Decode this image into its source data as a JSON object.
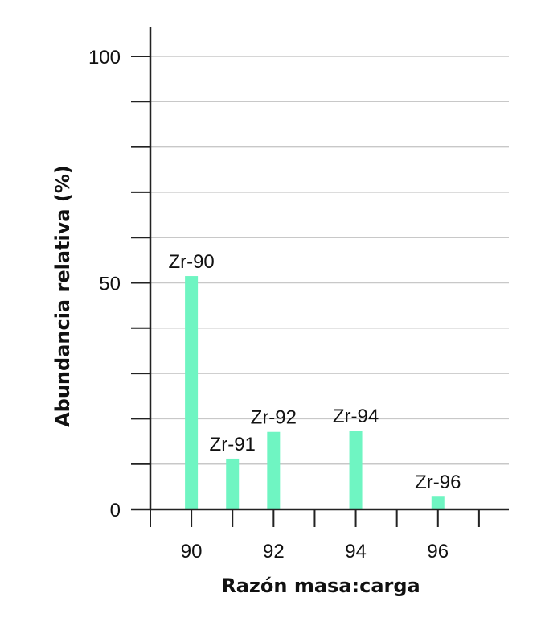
{
  "chart_data": {
    "type": "bar",
    "xlabel": "Razón masa:carga",
    "ylabel": "Abundancia relativa (%)",
    "ylim": [
      0,
      100
    ],
    "xlim": [
      89,
      98
    ],
    "y_ticks": [
      0,
      50,
      100
    ],
    "y_minor_ticks": [
      10,
      20,
      30,
      40,
      60,
      70,
      80,
      90
    ],
    "x_ticks": [
      90,
      92,
      94,
      96
    ],
    "x_minor_ticks": [
      89,
      91,
      93,
      95,
      97
    ],
    "grid": true,
    "bar_color": "#6ff5c2",
    "points": [
      {
        "x": 90,
        "y": 51.5,
        "label": "Zr-90"
      },
      {
        "x": 91,
        "y": 11.2,
        "label": "Zr-91"
      },
      {
        "x": 92,
        "y": 17.1,
        "label": "Zr-92"
      },
      {
        "x": 94,
        "y": 17.4,
        "label": "Zr-94"
      },
      {
        "x": 96,
        "y": 2.8,
        "label": "Zr-96"
      }
    ]
  }
}
